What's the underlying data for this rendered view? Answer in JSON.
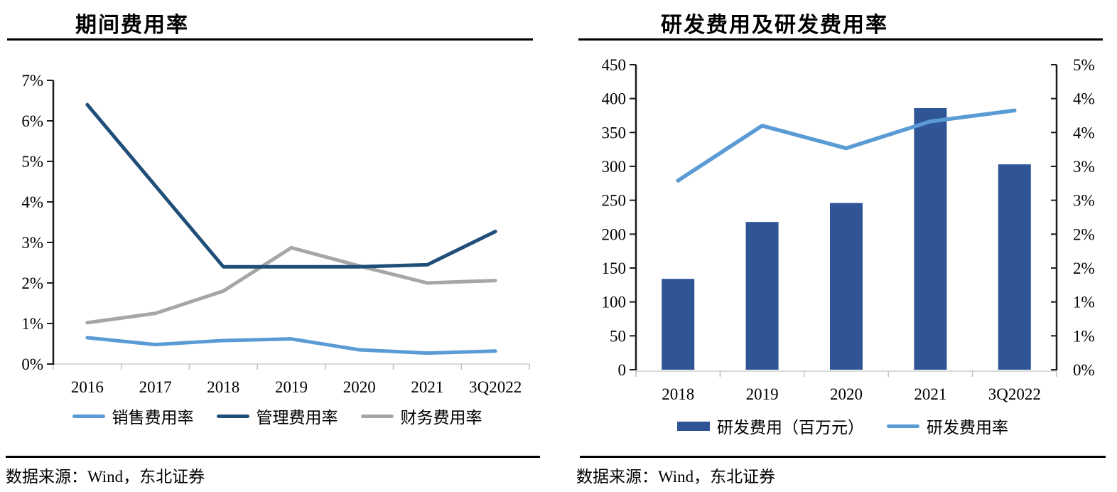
{
  "panels": [
    {
      "title": "期间费用率",
      "source": "数据来源：Wind，东北证券"
    },
    {
      "title": "研发费用及研发费用率",
      "source": "数据来源：Wind，东北证券"
    }
  ],
  "colors": {
    "light_blue": "#5B9BD5",
    "dark_navy": "#1F4E79",
    "gray": "#A6A6A6",
    "bar_blue": "#2F5597",
    "axis_black": "#1a1a1a",
    "category_axis": "#D9D9D9",
    "category_tick": "#BFBFBF"
  },
  "chart_data": [
    {
      "type": "line",
      "title": "期间费用率",
      "categories": [
        "2016",
        "2017",
        "2018",
        "2019",
        "2020",
        "2021",
        "3Q2022"
      ],
      "series": [
        {
          "name": "销售费用率",
          "color": "#5B9BD5",
          "values": [
            0.65,
            0.48,
            0.58,
            0.62,
            0.35,
            0.27,
            0.32
          ]
        },
        {
          "name": "管理费用率",
          "color": "#1F4E79",
          "values": [
            6.4,
            4.4,
            2.4,
            2.4,
            2.4,
            2.45,
            3.27
          ]
        },
        {
          "name": "财务费用率",
          "color": "#A6A6A6",
          "values": [
            1.02,
            1.25,
            1.8,
            2.87,
            2.42,
            2.0,
            2.06
          ]
        }
      ],
      "ylim": [
        0,
        7
      ],
      "ytick_step": 1,
      "ytick_format": "percent",
      "ytick_labels": [
        "0%",
        "1%",
        "2%",
        "3%",
        "4%",
        "5%",
        "6%",
        "7%"
      ],
      "grid": false,
      "legend_position": "bottom"
    },
    {
      "type": "bar+line",
      "title": "研发费用及研发费用率",
      "categories": [
        "2018",
        "2019",
        "2020",
        "2021",
        "3Q2022"
      ],
      "bar_series": {
        "name": "研发费用（百万元）",
        "color": "#2F5597",
        "axis": "left",
        "values": [
          134,
          218,
          246,
          386,
          303
        ]
      },
      "line_series": {
        "name": "研发费用率",
        "color": "#5B9BD5",
        "axis": "right",
        "values": [
          3.1,
          4.0,
          3.63,
          4.07,
          4.25
        ]
      },
      "left_ylim": [
        0,
        450
      ],
      "left_ytick_step": 50,
      "left_ytick_labels": [
        "0",
        "50",
        "100",
        "150",
        "200",
        "250",
        "300",
        "350",
        "400",
        "450"
      ],
      "right_ylim": [
        0,
        5
      ],
      "right_tick_labels": [
        "5%",
        "4%",
        "4%",
        "3%",
        "3%",
        "2%",
        "2%",
        "1%",
        "1%",
        "0%"
      ],
      "grid": false,
      "legend_position": "bottom"
    }
  ]
}
